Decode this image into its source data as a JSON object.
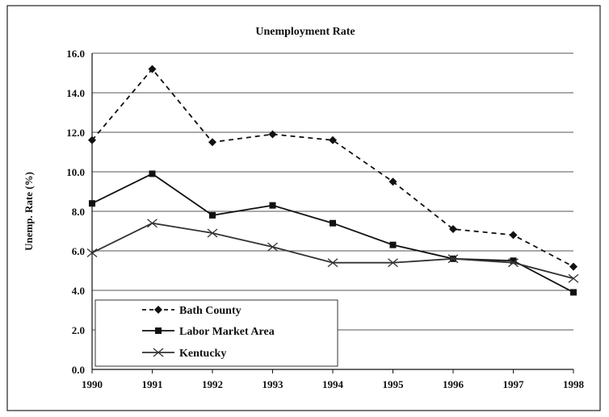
{
  "chart_data": {
    "type": "line",
    "title": "Unemployment Rate",
    "xlabel": "",
    "ylabel": "Unemp. Rate (%)",
    "x": [
      "1990",
      "1991",
      "1992",
      "1993",
      "1994",
      "1995",
      "1996",
      "1997",
      "1998"
    ],
    "ylim": [
      0,
      16
    ],
    "yticks": [
      "0.0",
      "2.0",
      "4.0",
      "6.0",
      "8.0",
      "10.0",
      "12.0",
      "14.0",
      "16.0"
    ],
    "grid": true,
    "legend_position": "bottom-left",
    "series": [
      {
        "name": "Bath County",
        "style": "dashed",
        "marker": "diamond",
        "values": [
          11.6,
          15.2,
          11.5,
          11.9,
          11.6,
          9.5,
          7.1,
          6.8,
          5.2
        ]
      },
      {
        "name": "Labor Market Area",
        "style": "solid",
        "marker": "square",
        "values": [
          8.4,
          9.9,
          7.8,
          8.3,
          7.4,
          6.3,
          5.6,
          5.5,
          3.9
        ]
      },
      {
        "name": "Kentucky",
        "style": "solid",
        "marker": "x",
        "values": [
          5.9,
          7.4,
          6.9,
          6.2,
          5.4,
          5.4,
          5.6,
          5.4,
          4.6
        ]
      }
    ]
  }
}
